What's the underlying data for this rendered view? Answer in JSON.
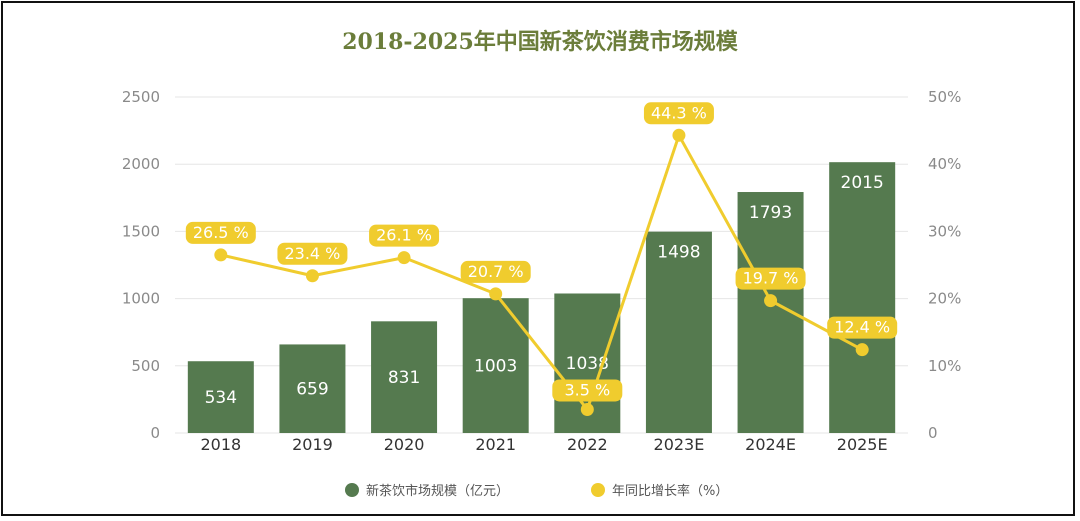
{
  "chart_data": {
    "type": "bar+line",
    "title": "2018-2025年中国新茶饮消费市场规模",
    "categories": [
      "2018",
      "2019",
      "2020",
      "2021",
      "2022",
      "2023E",
      "2024E",
      "2025E"
    ],
    "series": [
      {
        "name": "新茶饮市场规模（亿元）",
        "type": "bar",
        "axis": "left",
        "values": [
          534,
          659,
          831,
          1003,
          1038,
          1498,
          1793,
          2015
        ],
        "labels": [
          "534",
          "659",
          "831",
          "1003",
          "1038",
          "1498",
          "1793",
          "2015"
        ]
      },
      {
        "name": "年同比增长率（%）",
        "type": "line",
        "axis": "right",
        "values": [
          26.5,
          23.4,
          26.1,
          20.7,
          3.5,
          44.3,
          19.7,
          12.4
        ],
        "labels": [
          "26.5 %",
          "23.4 %",
          "26.1 %",
          "20.7 %",
          "3.5 %",
          "44.3 %",
          "19.7 %",
          "12.4 %"
        ]
      }
    ],
    "y_left": {
      "min": 0,
      "max": 2500,
      "ticks": [
        "0",
        "500",
        "1000",
        "1500",
        "2000",
        "2500"
      ]
    },
    "y_right": {
      "min": 0,
      "max": 50,
      "ticks": [
        "0",
        "10%",
        "20%",
        "30%",
        "40%",
        "50%"
      ]
    },
    "grid": true,
    "legend_position": "bottom"
  },
  "colors": {
    "bar": "#557a4f",
    "line": "#f0cc2e",
    "label_bg": "#f0cc2e",
    "grid": "#e6e6e6",
    "title": "#6b7d3a"
  }
}
